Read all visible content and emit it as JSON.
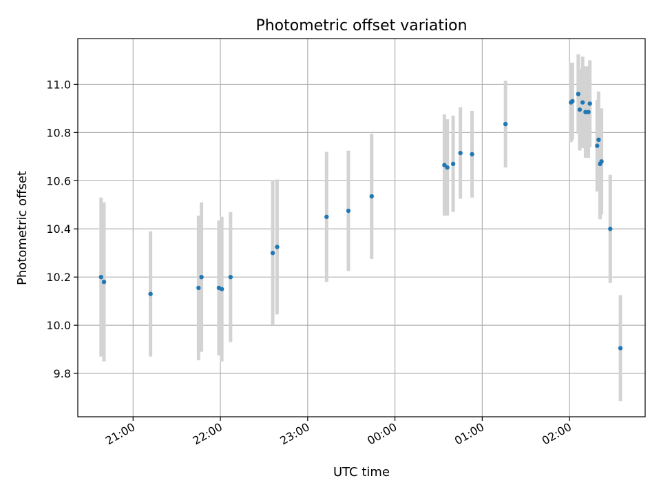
{
  "chart_data": {
    "type": "scatter",
    "title": "Photometric offset variation",
    "xlabel": "UTC time",
    "ylabel": "Photometric offset",
    "grid": true,
    "xlim": [
      "20:22",
      "02:52"
    ],
    "ylim": [
      9.62,
      11.19
    ],
    "x_ticks": [
      "21:00",
      "22:00",
      "23:00",
      "00:00",
      "01:00",
      "02:00"
    ],
    "y_ticks": [
      "9.8",
      "10.0",
      "10.2",
      "10.4",
      "10.6",
      "10.8",
      "11.0"
    ],
    "point_color": "#1f77b4",
    "errorbar_color": "#d3d3d3",
    "points": [
      {
        "t": "20:38",
        "y": 10.2,
        "err": 0.33
      },
      {
        "t": "20:40",
        "y": 10.18,
        "err": 0.33
      },
      {
        "t": "21:12",
        "y": 10.13,
        "err": 0.26
      },
      {
        "t": "21:45",
        "y": 10.155,
        "err": 0.3
      },
      {
        "t": "21:47",
        "y": 10.2,
        "err": 0.31
      },
      {
        "t": "21:59",
        "y": 10.155,
        "err": 0.28
      },
      {
        "t": "22:01",
        "y": 10.15,
        "err": 0.3
      },
      {
        "t": "22:07",
        "y": 10.2,
        "err": 0.27
      },
      {
        "t": "22:36",
        "y": 10.3,
        "err": 0.3
      },
      {
        "t": "22:39",
        "y": 10.325,
        "err": 0.28
      },
      {
        "t": "23:13",
        "y": 10.45,
        "err": 0.27
      },
      {
        "t": "23:28",
        "y": 10.475,
        "err": 0.25
      },
      {
        "t": "23:44",
        "y": 10.535,
        "err": 0.26
      },
      {
        "t": "00:34",
        "y": 10.665,
        "err": 0.21
      },
      {
        "t": "00:36",
        "y": 10.655,
        "err": 0.2
      },
      {
        "t": "00:40",
        "y": 10.67,
        "err": 0.2
      },
      {
        "t": "00:45",
        "y": 10.715,
        "err": 0.19
      },
      {
        "t": "00:53",
        "y": 10.71,
        "err": 0.18
      },
      {
        "t": "01:16",
        "y": 10.835,
        "err": 0.18
      },
      {
        "t": "02:01",
        "y": 10.925,
        "err": 0.165
      },
      {
        "t": "02:02",
        "y": 10.93,
        "err": 0.16
      },
      {
        "t": "02:06",
        "y": 10.96,
        "err": 0.165
      },
      {
        "t": "02:07",
        "y": 10.895,
        "err": 0.17
      },
      {
        "t": "02:09",
        "y": 10.925,
        "err": 0.19
      },
      {
        "t": "02:11",
        "y": 10.885,
        "err": 0.19
      },
      {
        "t": "02:13",
        "y": 10.885,
        "err": 0.19
      },
      {
        "t": "02:14",
        "y": 10.92,
        "err": 0.18
      },
      {
        "t": "02:19",
        "y": 10.745,
        "err": 0.19
      },
      {
        "t": "02:20",
        "y": 10.77,
        "err": 0.2
      },
      {
        "t": "02:21",
        "y": 10.67,
        "err": 0.23
      },
      {
        "t": "02:22",
        "y": 10.68,
        "err": 0.22
      },
      {
        "t": "02:28",
        "y": 10.4,
        "err": 0.225
      },
      {
        "t": "02:35",
        "y": 9.905,
        "err": 0.22
      }
    ]
  }
}
